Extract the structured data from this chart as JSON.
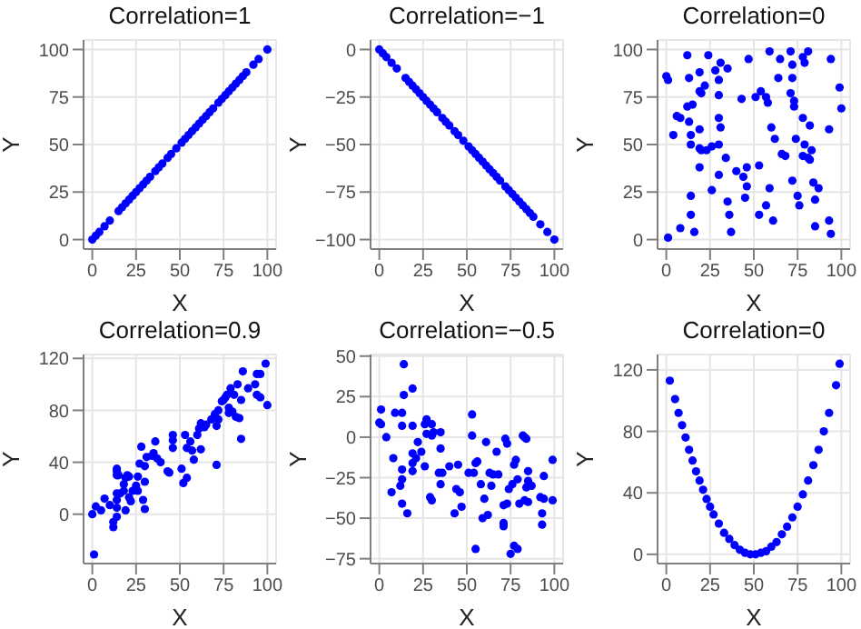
{
  "chart_data": [
    {
      "type": "scatter",
      "title": "Correlation=1",
      "xlabel": "X",
      "ylabel": "Y",
      "color": "#0000ff",
      "marker": "circle",
      "grid": true,
      "xlim": [
        -5,
        105
      ],
      "ylim": [
        -5,
        105
      ],
      "xticks": [
        0,
        25,
        50,
        75,
        100
      ],
      "yticks": [
        0,
        25,
        50,
        75,
        100
      ],
      "x": [
        0,
        2,
        4,
        7,
        10,
        15,
        17,
        19,
        21,
        23,
        25,
        27,
        29,
        31,
        33,
        36,
        38,
        40,
        43,
        45,
        48,
        51,
        53,
        55,
        57,
        59,
        61,
        63,
        65,
        67,
        69,
        72,
        74,
        76,
        78,
        80,
        82,
        84,
        86,
        88,
        92,
        95,
        100
      ],
      "values": [
        0,
        2,
        4,
        7,
        10,
        15,
        17,
        19,
        21,
        23,
        25,
        27,
        29,
        31,
        33,
        36,
        38,
        40,
        43,
        45,
        48,
        51,
        53,
        55,
        57,
        59,
        61,
        63,
        65,
        67,
        69,
        72,
        74,
        76,
        78,
        80,
        82,
        84,
        86,
        88,
        92,
        95,
        100
      ]
    },
    {
      "type": "scatter",
      "title": "Correlation=−1",
      "xlabel": "X",
      "ylabel": "Y",
      "color": "#0000ff",
      "marker": "circle",
      "grid": true,
      "xlim": [
        -5,
        105
      ],
      "ylim": [
        -105,
        5
      ],
      "xticks": [
        0,
        25,
        50,
        75,
        100
      ],
      "yticks": [
        -100,
        -75,
        -50,
        -25,
        0
      ],
      "x": [
        0,
        2,
        4,
        7,
        10,
        15,
        17,
        19,
        21,
        23,
        25,
        27,
        29,
        31,
        33,
        36,
        38,
        40,
        43,
        45,
        48,
        51,
        53,
        55,
        57,
        59,
        61,
        63,
        65,
        67,
        69,
        72,
        74,
        76,
        78,
        80,
        82,
        84,
        86,
        88,
        92,
        96,
        100
      ],
      "values": [
        0,
        -2,
        -4,
        -7,
        -10,
        -15,
        -17,
        -19,
        -21,
        -23,
        -25,
        -27,
        -29,
        -31,
        -33,
        -36,
        -38,
        -40,
        -43,
        -45,
        -48,
        -51,
        -53,
        -55,
        -57,
        -59,
        -61,
        -63,
        -65,
        -67,
        -69,
        -72,
        -74,
        -76,
        -78,
        -80,
        -82,
        -84,
        -86,
        -88,
        -92,
        -96,
        -100
      ]
    },
    {
      "type": "scatter",
      "title": "Correlation=0",
      "xlabel": "X",
      "ylabel": "Y",
      "color": "#0000ff",
      "marker": "circle",
      "grid": true,
      "xlim": [
        -5,
        105
      ],
      "ylim": [
        -5,
        105
      ],
      "xticks": [
        0,
        25,
        50,
        75,
        100
      ],
      "yticks": [
        0,
        25,
        50,
        75,
        100
      ],
      "x": [
        0,
        1,
        4,
        6,
        8,
        8,
        1,
        12,
        13,
        12,
        13,
        14,
        14,
        15,
        14,
        14,
        16,
        19,
        19,
        20,
        22,
        24,
        19,
        19,
        20,
        23,
        19,
        26,
        28,
        31,
        30,
        30,
        35,
        30,
        31,
        30,
        34,
        30,
        26,
        35,
        36,
        37,
        40,
        43,
        47,
        44,
        46,
        46,
        45,
        51,
        54,
        57,
        58,
        59,
        53,
        53,
        57,
        60,
        62,
        59,
        61,
        65,
        64,
        66,
        68,
        71,
        72,
        72,
        71,
        73,
        73,
        74,
        72,
        75,
        76,
        78,
        79,
        81,
        78,
        82,
        79,
        83,
        78,
        81,
        82,
        84,
        87,
        85,
        85,
        94,
        93,
        93,
        94,
        99,
        100
      ],
      "values": [
        86,
        84,
        55,
        65,
        64,
        6,
        1,
        97,
        85,
        70,
        62,
        55,
        50,
        71,
        23,
        13,
        4,
        88,
        78,
        77,
        81,
        97,
        58,
        48,
        47,
        47,
        38,
        49,
        89,
        93,
        84,
        76,
        90,
        64,
        59,
        50,
        43,
        34,
        26,
        20,
        13,
        4,
        36,
        74,
        95,
        33,
        38,
        28,
        22,
        75,
        78,
        75,
        72,
        99,
        39,
        13,
        18,
        59,
        53,
        27,
        10,
        95,
        85,
        45,
        44,
        99,
        92,
        85,
        77,
        73,
        70,
        53,
        31,
        23,
        18,
        96,
        93,
        99,
        64,
        60,
        50,
        47,
        44,
        43,
        42,
        30,
        27,
        21,
        7,
        95,
        58,
        10,
        3,
        80,
        69
      ]
    },
    {
      "type": "scatter",
      "title": "Correlation=0.9",
      "xlabel": "X",
      "ylabel": "Y",
      "color": "#0000ff",
      "marker": "circle",
      "grid": true,
      "xlim": [
        -5,
        105
      ],
      "ylim": [
        -38,
        123
      ],
      "xticks": [
        0,
        25,
        50,
        75,
        100
      ],
      "yticks": [
        0,
        40,
        80,
        120
      ],
      "x": [
        0,
        1,
        2,
        5,
        7,
        10,
        12,
        12,
        14,
        14,
        14,
        14,
        14,
        14,
        14,
        15,
        16,
        18,
        18,
        19,
        20,
        21,
        19,
        21,
        22,
        23,
        25,
        26,
        26,
        28,
        27,
        29,
        30,
        30,
        30,
        31,
        34,
        35,
        36,
        37,
        39,
        43,
        44,
        46,
        46,
        46,
        51,
        52,
        53,
        54,
        54,
        56,
        57,
        58,
        60,
        61,
        62,
        62,
        64,
        65,
        68,
        70,
        71,
        71,
        72,
        72,
        74,
        75,
        76,
        77,
        78,
        78,
        79,
        80,
        82,
        81,
        83,
        84,
        85,
        85,
        86,
        89,
        93,
        94,
        96,
        94,
        96,
        99,
        100
      ],
      "values": [
        0,
        -31,
        6,
        3,
        12,
        7,
        -10,
        -6,
        -2,
        5,
        11,
        16,
        30,
        35,
        33,
        30,
        16,
        18,
        23,
        28,
        30,
        29,
        3,
        13,
        10,
        18,
        22,
        18,
        29,
        52,
        39,
        11,
        4,
        25,
        37,
        44,
        45,
        47,
        56,
        43,
        40,
        33,
        32,
        51,
        61,
        57,
        35,
        24,
        61,
        51,
        28,
        56,
        49,
        42,
        61,
        66,
        70,
        50,
        67,
        69,
        73,
        77,
        38,
        68,
        73,
        80,
        87,
        88,
        90,
        92,
        82,
        78,
        97,
        79,
        75,
        92,
        100,
        74,
        58,
        88,
        110,
        97,
        100,
        108,
        108,
        92,
        90,
        116,
        84
      ]
    },
    {
      "type": "scatter",
      "title": "Correlation=−0.5",
      "xlabel": "X",
      "ylabel": "Y",
      "color": "#0000ff",
      "marker": "circle",
      "grid": true,
      "xlim": [
        -5,
        105
      ],
      "ylim": [
        -78,
        51
      ],
      "xticks": [
        0,
        25,
        50,
        75,
        100
      ],
      "yticks": [
        -75,
        -50,
        -25,
        0,
        25,
        50
      ],
      "x": [
        0,
        1,
        1,
        4,
        7,
        8,
        9,
        13,
        13,
        14,
        14,
        13,
        13,
        12,
        13,
        16,
        19,
        19,
        19,
        19,
        19,
        21,
        22,
        24,
        26,
        26,
        27,
        27,
        30,
        31,
        30,
        29,
        30,
        35,
        35,
        34,
        35,
        36,
        40,
        43,
        45,
        44,
        46,
        47,
        51,
        53,
        53,
        54,
        55,
        56,
        55,
        58,
        59,
        60,
        61,
        62,
        63,
        64,
        65,
        67,
        68,
        71,
        71,
        71,
        72,
        73,
        73,
        74,
        75,
        76,
        77,
        78,
        77,
        79,
        79,
        80,
        82,
        83,
        84,
        84,
        85,
        85,
        83,
        85,
        87,
        92,
        93,
        93,
        94,
        94,
        99,
        99
      ],
      "values": [
        9,
        8,
        17,
        0,
        -34,
        -13,
        15,
        15,
        7,
        26,
        45,
        -20,
        -26,
        -30,
        -41,
        -47,
        30,
        7,
        -10,
        -16,
        -21,
        -13,
        -3,
        -9,
        -18,
        8,
        11,
        2,
        8,
        3,
        1,
        -37,
        -39,
        3,
        -7,
        -22,
        -29,
        -22,
        -18,
        -47,
        -17,
        -32,
        -34,
        -43,
        -22,
        14,
        1,
        -22,
        -16,
        -15,
        -69,
        -29,
        -50,
        -38,
        -3,
        -48,
        -22,
        -30,
        -23,
        -9,
        -23,
        -42,
        -53,
        -55,
        -1,
        -4,
        -41,
        -32,
        -72,
        -29,
        -17,
        -14,
        -67,
        -69,
        -26,
        -41,
        1,
        0,
        -1,
        -31,
        -27,
        -21,
        -39,
        -40,
        -30,
        -37,
        -47,
        -54,
        -38,
        -24,
        -14,
        -39
      ]
    },
    {
      "type": "scatter",
      "title": "Correlation=0",
      "xlabel": "X",
      "ylabel": "Y",
      "color": "#0000ff",
      "marker": "circle",
      "grid": true,
      "xlim": [
        -5,
        105
      ],
      "ylim": [
        -6,
        130
      ],
      "xticks": [
        0,
        25,
        50,
        75,
        100
      ],
      "yticks": [
        0,
        40,
        80,
        120
      ],
      "x": [
        2,
        5,
        7,
        9,
        11,
        13,
        15,
        17,
        19,
        21,
        23,
        25,
        27,
        30,
        33,
        36,
        39,
        42,
        45,
        48,
        51,
        54,
        57,
        60,
        63,
        66,
        69,
        72,
        75,
        78,
        81,
        84,
        87,
        90,
        93,
        97,
        99
      ],
      "values": [
        113,
        101,
        92,
        84,
        76,
        68,
        61,
        54,
        48,
        42,
        36,
        31,
        26,
        20,
        14,
        10,
        6,
        3,
        1,
        0,
        0,
        1,
        2,
        5,
        8,
        13,
        18,
        24,
        31,
        39,
        48,
        58,
        68,
        80,
        92,
        110,
        124
      ]
    }
  ]
}
